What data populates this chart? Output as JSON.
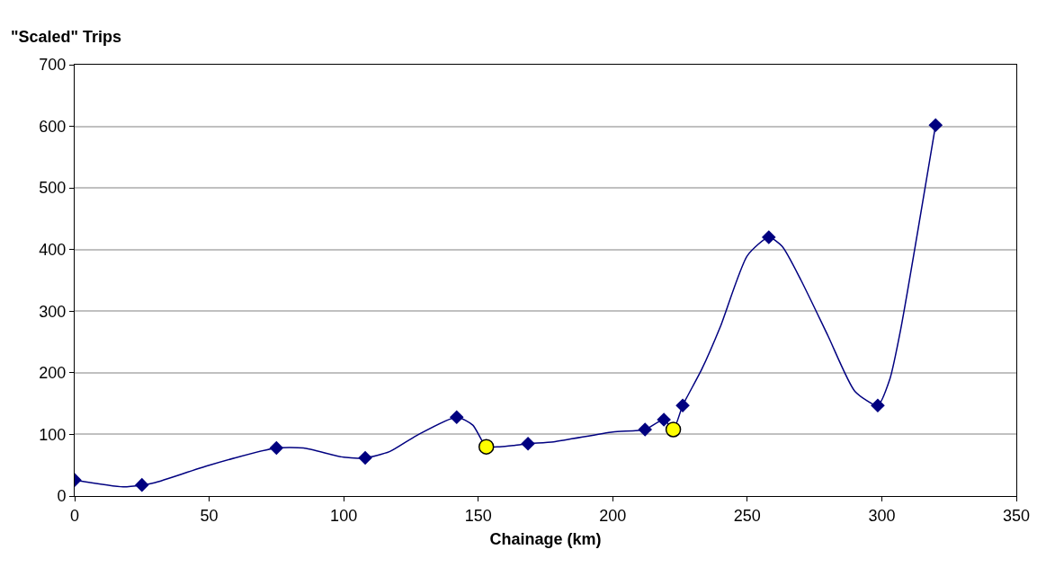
{
  "chart_data": {
    "type": "line",
    "ylabel": "\"Scaled\" Trips",
    "xlabel": "Chainage (km)",
    "xlim": [
      0,
      350
    ],
    "xticks": [
      0,
      50,
      100,
      150,
      200,
      250,
      300,
      350
    ],
    "ylim": [
      0,
      700
    ],
    "yticks": [
      0,
      100,
      200,
      300,
      400,
      500,
      600,
      700
    ],
    "grid": "y",
    "series": [
      {
        "color": "#000080",
        "marker": "none",
        "x": [
          0,
          18,
          25,
          30,
          50,
          75,
          85,
          100,
          108,
          117,
          127,
          142,
          148,
          153,
          158,
          163,
          168.5,
          178,
          200,
          212,
          219,
          222.5,
          226,
          233,
          240,
          250,
          258,
          263,
          270,
          280,
          290,
          298.5,
          303,
          307,
          320
        ],
        "values": [
          26,
          15,
          18,
          22,
          50,
          78,
          78,
          63,
          62,
          72,
          98,
          128,
          115,
          80,
          80,
          82,
          85,
          88,
          104,
          108,
          124,
          108,
          147,
          205,
          275,
          390,
          420,
          405,
          350,
          260,
          170,
          147,
          190,
          270,
          602
        ]
      },
      {
        "type": "scatter",
        "color": "#000080",
        "marker": "diamond",
        "x": [
          0,
          25,
          75,
          108,
          142,
          168.5,
          212,
          219,
          226,
          258,
          298.5,
          320
        ],
        "values": [
          26,
          18,
          78,
          62,
          128,
          85,
          108,
          124,
          147,
          420,
          147,
          602
        ]
      },
      {
        "type": "scatter",
        "color": "#ffff00",
        "marker": "circle",
        "x": [
          153,
          222.5
        ],
        "values": [
          80,
          108
        ]
      }
    ]
  }
}
